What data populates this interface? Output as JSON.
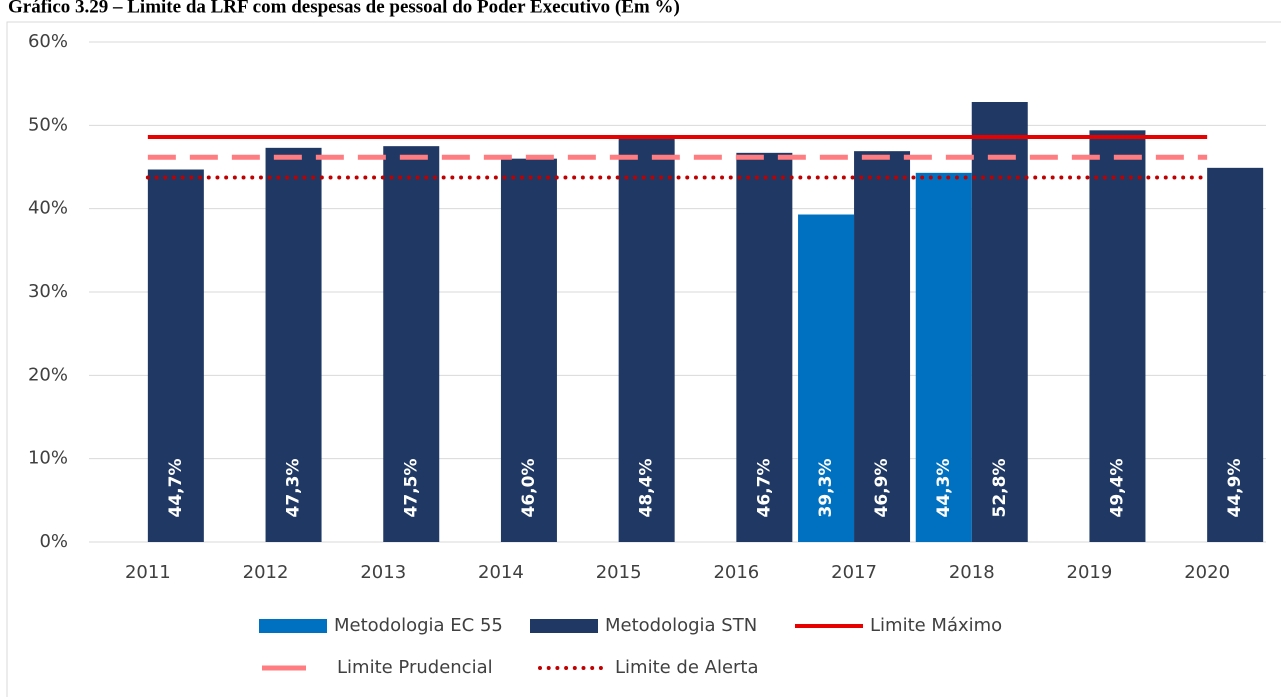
{
  "chart_data": {
    "type": "bar",
    "title": "Gráfico 3.29 – Limite da LRF com despesas de pessoal do Poder Executivo (Em %)",
    "categories": [
      "2011",
      "2012",
      "2013",
      "2014",
      "2015",
      "2016",
      "2017",
      "2018",
      "2019",
      "2020"
    ],
    "series": [
      {
        "name": "Metodologia EC 55",
        "color": "#0070c0",
        "values": [
          null,
          null,
          null,
          null,
          null,
          null,
          39.3,
          44.3,
          null,
          null
        ],
        "value_labels": [
          null,
          null,
          null,
          null,
          null,
          null,
          "39,3%",
          "44,3%",
          null,
          null
        ]
      },
      {
        "name": "Metodologia STN",
        "color": "#1f3864",
        "values": [
          44.7,
          47.3,
          47.5,
          46.0,
          48.4,
          46.7,
          46.9,
          52.8,
          49.4,
          44.9
        ],
        "value_labels": [
          "44,7%",
          "47,3%",
          "47,5%",
          "46,0%",
          "48,4%",
          "46,7%",
          "46,9%",
          "52,8%",
          "49,4%",
          "44,9%"
        ]
      },
      {
        "name": "Limite Máximo",
        "type": "line",
        "style": "solid",
        "color": "#e60000",
        "values": [
          48.6,
          48.6,
          48.6,
          48.6,
          48.6,
          48.6,
          48.6,
          48.6,
          48.6,
          48.6
        ]
      },
      {
        "name": "Limite Prudencial",
        "type": "line",
        "style": "dashed",
        "color": "#ff7c80",
        "values": [
          46.17,
          46.17,
          46.17,
          46.17,
          46.17,
          46.17,
          46.17,
          46.17,
          46.17,
          46.17
        ]
      },
      {
        "name": "Limite de Alerta",
        "type": "line",
        "style": "dotted",
        "color": "#c00000",
        "values": [
          43.74,
          43.74,
          43.74,
          43.74,
          43.74,
          43.74,
          43.74,
          43.74,
          43.74,
          43.74
        ]
      }
    ],
    "ylim": [
      0,
      60
    ],
    "yticks": [
      {
        "value": 0,
        "label": "0%"
      },
      {
        "value": 10,
        "label": "10%"
      },
      {
        "value": 20,
        "label": "20%"
      },
      {
        "value": 30,
        "label": "30%"
      },
      {
        "value": 40,
        "label": "40%"
      },
      {
        "value": 50,
        "label": "50%"
      },
      {
        "value": 60,
        "label": "60%"
      }
    ],
    "grid": true
  }
}
